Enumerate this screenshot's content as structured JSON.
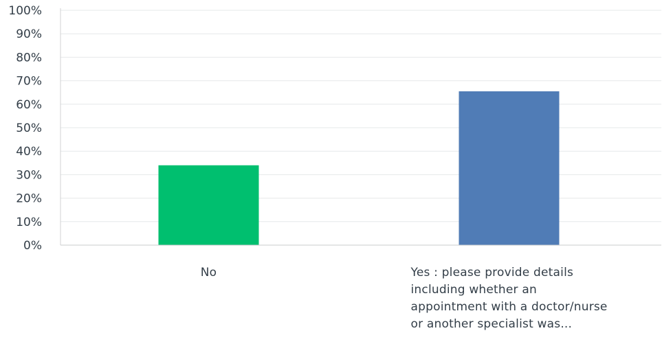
{
  "chart_data": {
    "type": "bar",
    "title": "",
    "xlabel": "",
    "ylabel": "",
    "categories": [
      "No",
      "Yes : please provide details including whether an appointment with a doctor/nurse or another specialist was..."
    ],
    "category_label_lines": [
      [
        "No"
      ],
      [
        "Yes : please provide details",
        "including whether an",
        "appointment with a doctor/nurse",
        "or another specialist was..."
      ]
    ],
    "values": [
      34,
      65.5
    ],
    "colors": [
      "#00bf6f",
      "#507cb6"
    ],
    "ylim": [
      0,
      100
    ],
    "y_ticks": [
      0,
      10,
      20,
      30,
      40,
      50,
      60,
      70,
      80,
      90,
      100
    ],
    "y_tick_labels": [
      "0%",
      "10%",
      "20%",
      "30%",
      "40%",
      "50%",
      "60%",
      "70%",
      "80%",
      "90%",
      "100%"
    ],
    "grid": true,
    "legend": "none"
  }
}
